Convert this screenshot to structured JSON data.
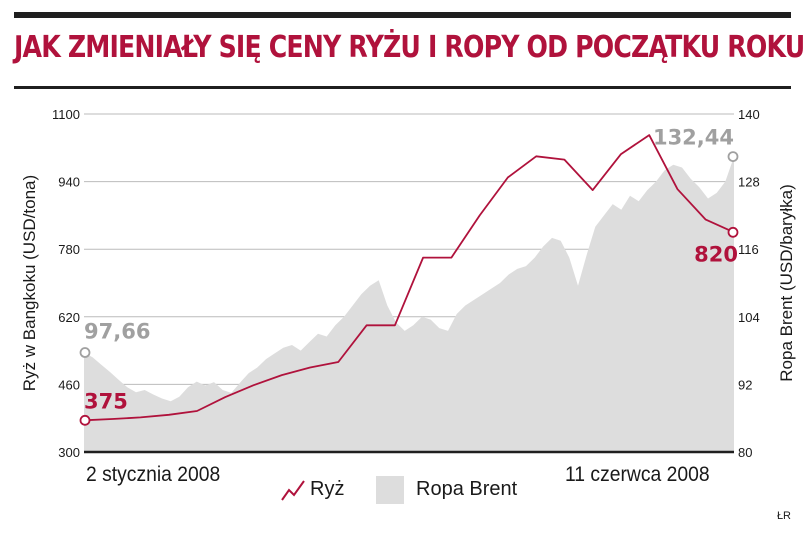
{
  "title": "JAK ZMIENIAŁY SIĘ CENY RYŻU I ROPY OD POCZĄTKU ROKU",
  "source": "ŁR",
  "colors": {
    "rice": "#b0123c",
    "oil_fill": "#dddddd",
    "oil_label": "#a0a0a0",
    "grid": "#bbbbbb",
    "rule": "#1f1f1f"
  },
  "legend": {
    "rice_label": "Ryż",
    "oil_label": "Ropa Brent"
  },
  "chart_data": {
    "type": "line",
    "x_start_label": "2 stycznia 2008",
    "x_end_label": "11 czerwca 2008",
    "left_axis": {
      "label": "Ryż w Bangkoku (USD/tona)",
      "min": 300,
      "max": 1100,
      "ticks": [
        300,
        460,
        620,
        780,
        940,
        1100
      ]
    },
    "right_axis": {
      "label": "Ropa Brent (USD/baryłka)",
      "min": 80,
      "max": 140,
      "ticks": [
        80,
        92,
        104,
        116,
        128,
        140
      ]
    },
    "grid": true,
    "series": [
      {
        "name": "Ryż",
        "axis": "left",
        "type": "line",
        "values": [
          375,
          378,
          382,
          388,
          397,
          430,
          458,
          482,
          500,
          513,
          600,
          600,
          760,
          760,
          860,
          950,
          1000,
          992,
          920,
          1005,
          1050,
          922,
          850,
          820
        ],
        "start_label": "375",
        "end_label": "820"
      },
      {
        "name": "Ropa Brent",
        "axis": "right",
        "type": "area",
        "values": [
          97.66,
          96.8,
          95.5,
          94.2,
          92.8,
          91.5,
          90.6,
          91.0,
          90.2,
          89.5,
          89.0,
          89.8,
          91.5,
          92.5,
          91.8,
          92.4,
          91.0,
          90.5,
          92.3,
          94.0,
          95.0,
          96.5,
          97.5,
          98.5,
          99.0,
          98.0,
          99.5,
          101.0,
          100.5,
          102.5,
          104.0,
          106.0,
          108.0,
          109.5,
          110.5,
          106.0,
          103.0,
          101.5,
          102.5,
          104.0,
          103.5,
          102.0,
          101.5,
          104.5,
          106.0,
          107.0,
          108.0,
          109.0,
          110.0,
          111.5,
          112.5,
          113.0,
          114.5,
          116.5,
          118.0,
          117.5,
          114.5,
          109.5,
          115.0,
          120.0,
          122.0,
          124.0,
          123.0,
          125.5,
          124.5,
          126.5,
          128.0,
          130.0,
          131.0,
          130.5,
          128.5,
          127.0,
          125.0,
          126.0,
          128.0,
          132.44
        ],
        "start_label": "97,66",
        "end_label": "132,44"
      }
    ]
  }
}
